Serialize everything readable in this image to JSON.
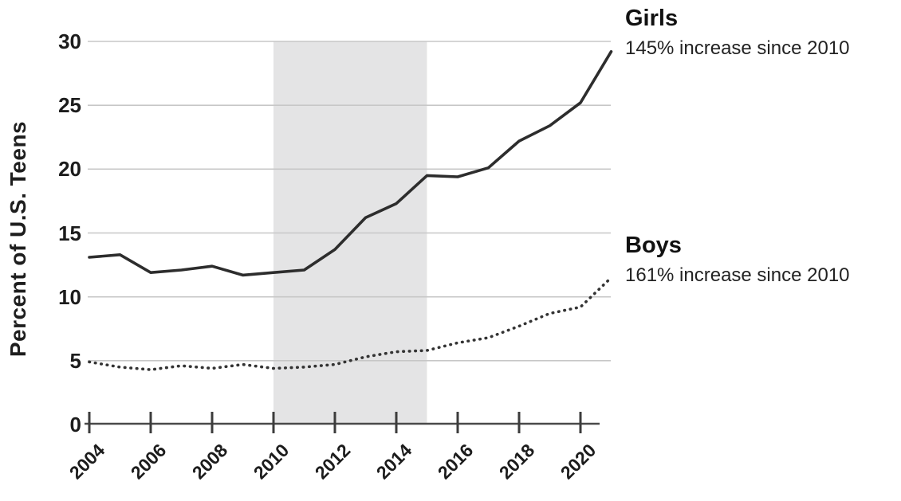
{
  "chart_data": {
    "type": "line",
    "title": "",
    "xlabel": "",
    "ylabel": "Percent of U.S. Teens",
    "x": [
      2004,
      2005,
      2006,
      2007,
      2008,
      2009,
      2010,
      2011,
      2012,
      2013,
      2014,
      2015,
      2016,
      2017,
      2018,
      2019,
      2020,
      2021
    ],
    "xticks": [
      2004,
      2006,
      2008,
      2010,
      2012,
      2014,
      2016,
      2018,
      2020
    ],
    "yticks": [
      0,
      5,
      10,
      15,
      20,
      25,
      30
    ],
    "xlim": [
      2004,
      2021
    ],
    "ylim": [
      0,
      30
    ],
    "grid": true,
    "legend_position": "right-of-line-ends",
    "shaded_region": {
      "x_start": 2010,
      "x_end": 2015,
      "color": "#e4e4e5"
    },
    "series": [
      {
        "name": "Girls",
        "annotation": "145% increase since 2010",
        "style": "solid",
        "color": "#2d2d2d",
        "values": [
          13.1,
          13.3,
          11.9,
          12.1,
          12.4,
          11.7,
          11.9,
          12.1,
          13.7,
          16.2,
          17.3,
          19.5,
          19.4,
          20.1,
          22.2,
          23.4,
          25.2,
          29.2
        ]
      },
      {
        "name": "Boys",
        "annotation": "161% increase since 2010",
        "style": "dotted",
        "color": "#333333",
        "values": [
          4.9,
          4.5,
          4.3,
          4.6,
          4.4,
          4.7,
          4.4,
          4.5,
          4.7,
          5.3,
          5.7,
          5.8,
          6.4,
          6.8,
          7.7,
          8.7,
          9.2,
          11.5
        ]
      }
    ],
    "colors": {
      "gridline": "#c7c7c7",
      "axis": "#4a4a4a",
      "tick": "#3c3c3c",
      "band": "#e4e4e5",
      "text": "#1c1c1c"
    }
  }
}
